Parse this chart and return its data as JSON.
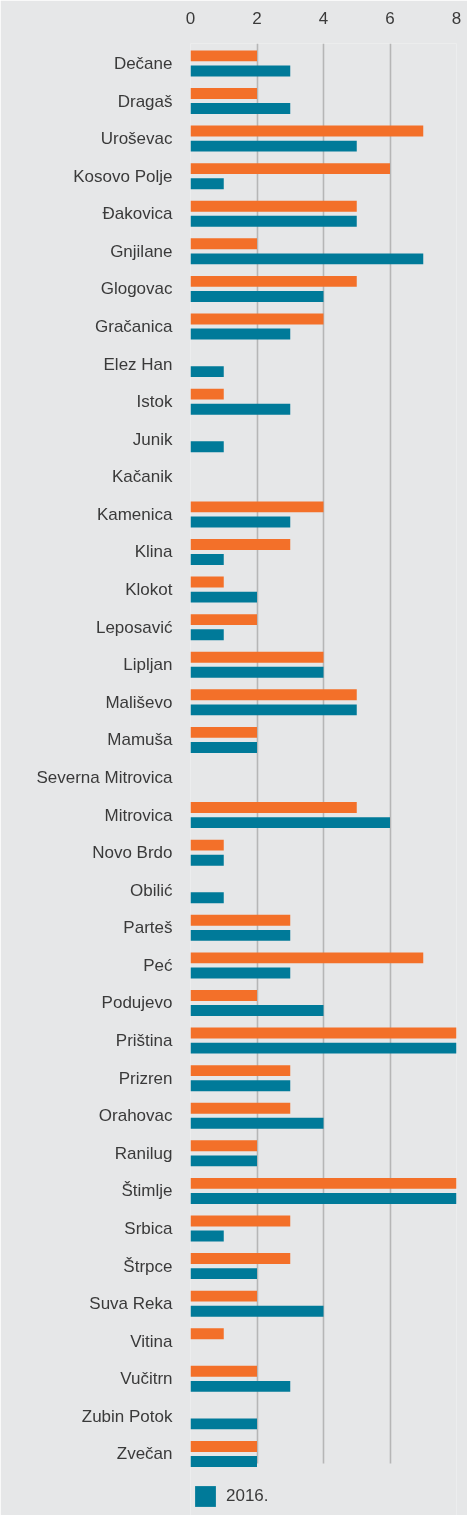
{
  "chart_data": {
    "type": "bar",
    "orientation": "horizontal",
    "categories": [
      "Dečane",
      "Dragaš",
      "Uroševac",
      "Kosovo Polje",
      "Đakovica",
      "Gnjilane",
      "Glogovac",
      "Gračanica",
      "Elez Han",
      "Istok",
      "Junik",
      "Kačanik",
      "Kamenica",
      "Klina",
      "Klokot",
      "Leposavić",
      "Lipljan",
      "Mališevo",
      "Mamuša",
      "Severna Mitrovica",
      "Mitrovica",
      "Novo Brdo",
      "Obilić",
      "Parteš",
      "Peć",
      "Podujevo",
      "Priština",
      "Prizren",
      "Orahovac",
      "Ranilug",
      "Štimlje",
      "Srbica",
      "Štrpce",
      "Suva Reka",
      "Vitina",
      "Vučitrn",
      "Zubin Potok",
      "Zvečan"
    ],
    "series": [
      {
        "color": "#f37029",
        "values": [
          2,
          2,
          7,
          6,
          5,
          2,
          5,
          4,
          null,
          1,
          null,
          null,
          4,
          3,
          1,
          2,
          4,
          5,
          2,
          null,
          5,
          1,
          null,
          3,
          7,
          2,
          8,
          3,
          3,
          2,
          8,
          3,
          3,
          2,
          1,
          2,
          null,
          2
        ]
      },
      {
        "name": "2016.",
        "color": "#007a99",
        "values": [
          3,
          3,
          5,
          1,
          5,
          7,
          4,
          3,
          1,
          3,
          1,
          null,
          3,
          1,
          2,
          1,
          4,
          5,
          2,
          null,
          6,
          1,
          1,
          3,
          3,
          4,
          8,
          3,
          4,
          2,
          8,
          1,
          2,
          4,
          null,
          3,
          2,
          2
        ]
      }
    ],
    "xlim": [
      0,
      8
    ],
    "xticks": [
      0,
      2,
      4,
      6,
      8
    ],
    "grid": "x",
    "legend": "bottom"
  }
}
